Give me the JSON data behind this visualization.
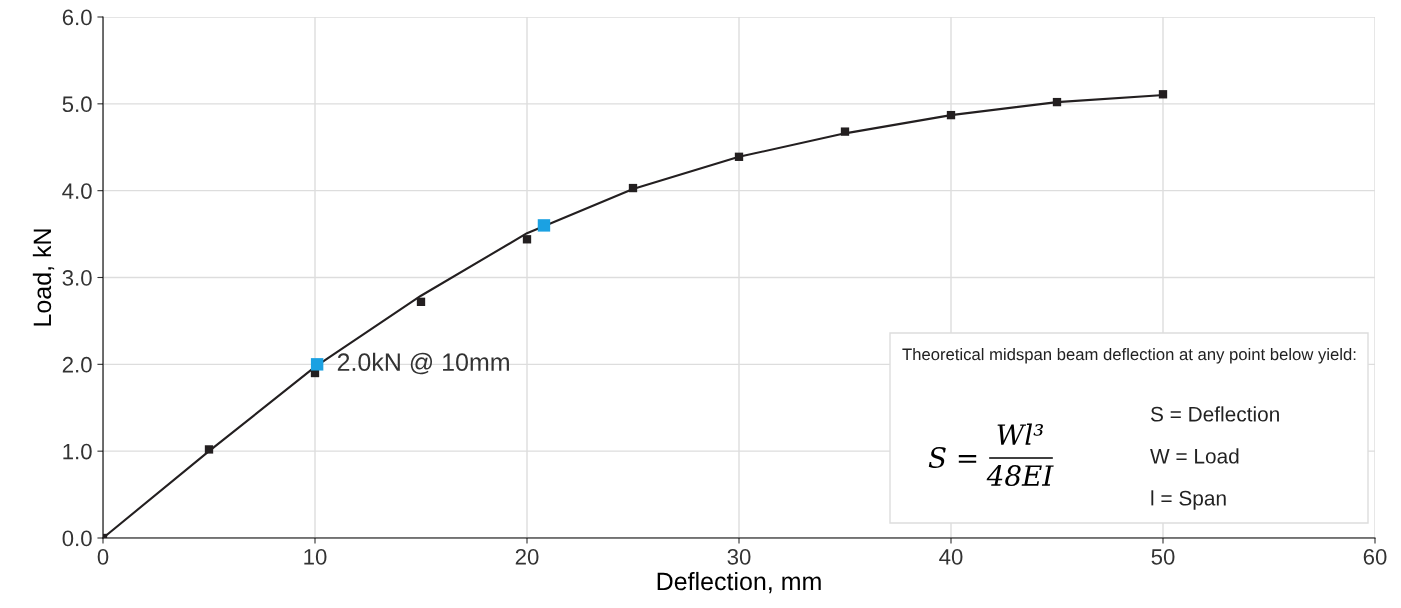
{
  "chart_data": {
    "type": "scatter",
    "xlabel": "Deflection, mm",
    "ylabel": "Load, kN",
    "xlim": [
      0,
      60
    ],
    "xticks": [
      0,
      10,
      20,
      30,
      40,
      50,
      60
    ],
    "ylim": [
      0,
      6
    ],
    "yticks": [
      {
        "value": 0,
        "label": "0.0"
      },
      {
        "value": 1,
        "label": "1.0"
      },
      {
        "value": 2,
        "label": "2.0"
      },
      {
        "value": 3,
        "label": "3.0"
      },
      {
        "value": 4,
        "label": "4.0"
      },
      {
        "value": 5,
        "label": "5.0"
      },
      {
        "value": 6,
        "label": "6.0"
      }
    ],
    "grid": true,
    "legend": false,
    "marker": "square",
    "series": [
      {
        "type": "line",
        "color": "#231f20",
        "marker": "none",
        "x": [
          0,
          5,
          10,
          15,
          20,
          25,
          30,
          35,
          40,
          45,
          50
        ],
        "values": [
          0,
          1.0,
          1.97,
          2.79,
          3.51,
          4.02,
          4.39,
          4.66,
          4.87,
          5.02,
          5.1
        ]
      },
      {
        "type": "scatter",
        "color": "#231f20",
        "x": [
          0,
          5,
          10,
          15,
          20,
          25,
          30,
          35,
          40,
          45,
          50
        ],
        "values": [
          0,
          1.02,
          1.9,
          2.72,
          3.44,
          4.03,
          4.39,
          4.68,
          4.87,
          5.02,
          5.11
        ]
      },
      {
        "type": "scatter",
        "color": "#1ba1e2",
        "x": [
          10.1,
          20.8
        ],
        "values": [
          2.0,
          3.6
        ]
      }
    ],
    "annotations": [
      {
        "text": "2.0kN @ 10mm",
        "x": 10.1,
        "y": 2.0
      },
      "Theoretical midspan beam deflection at any point below yield:",
      "S =",
      "Wl³",
      "48EI",
      "S = Deflection",
      "W = Load",
      "l = Span"
    ]
  }
}
